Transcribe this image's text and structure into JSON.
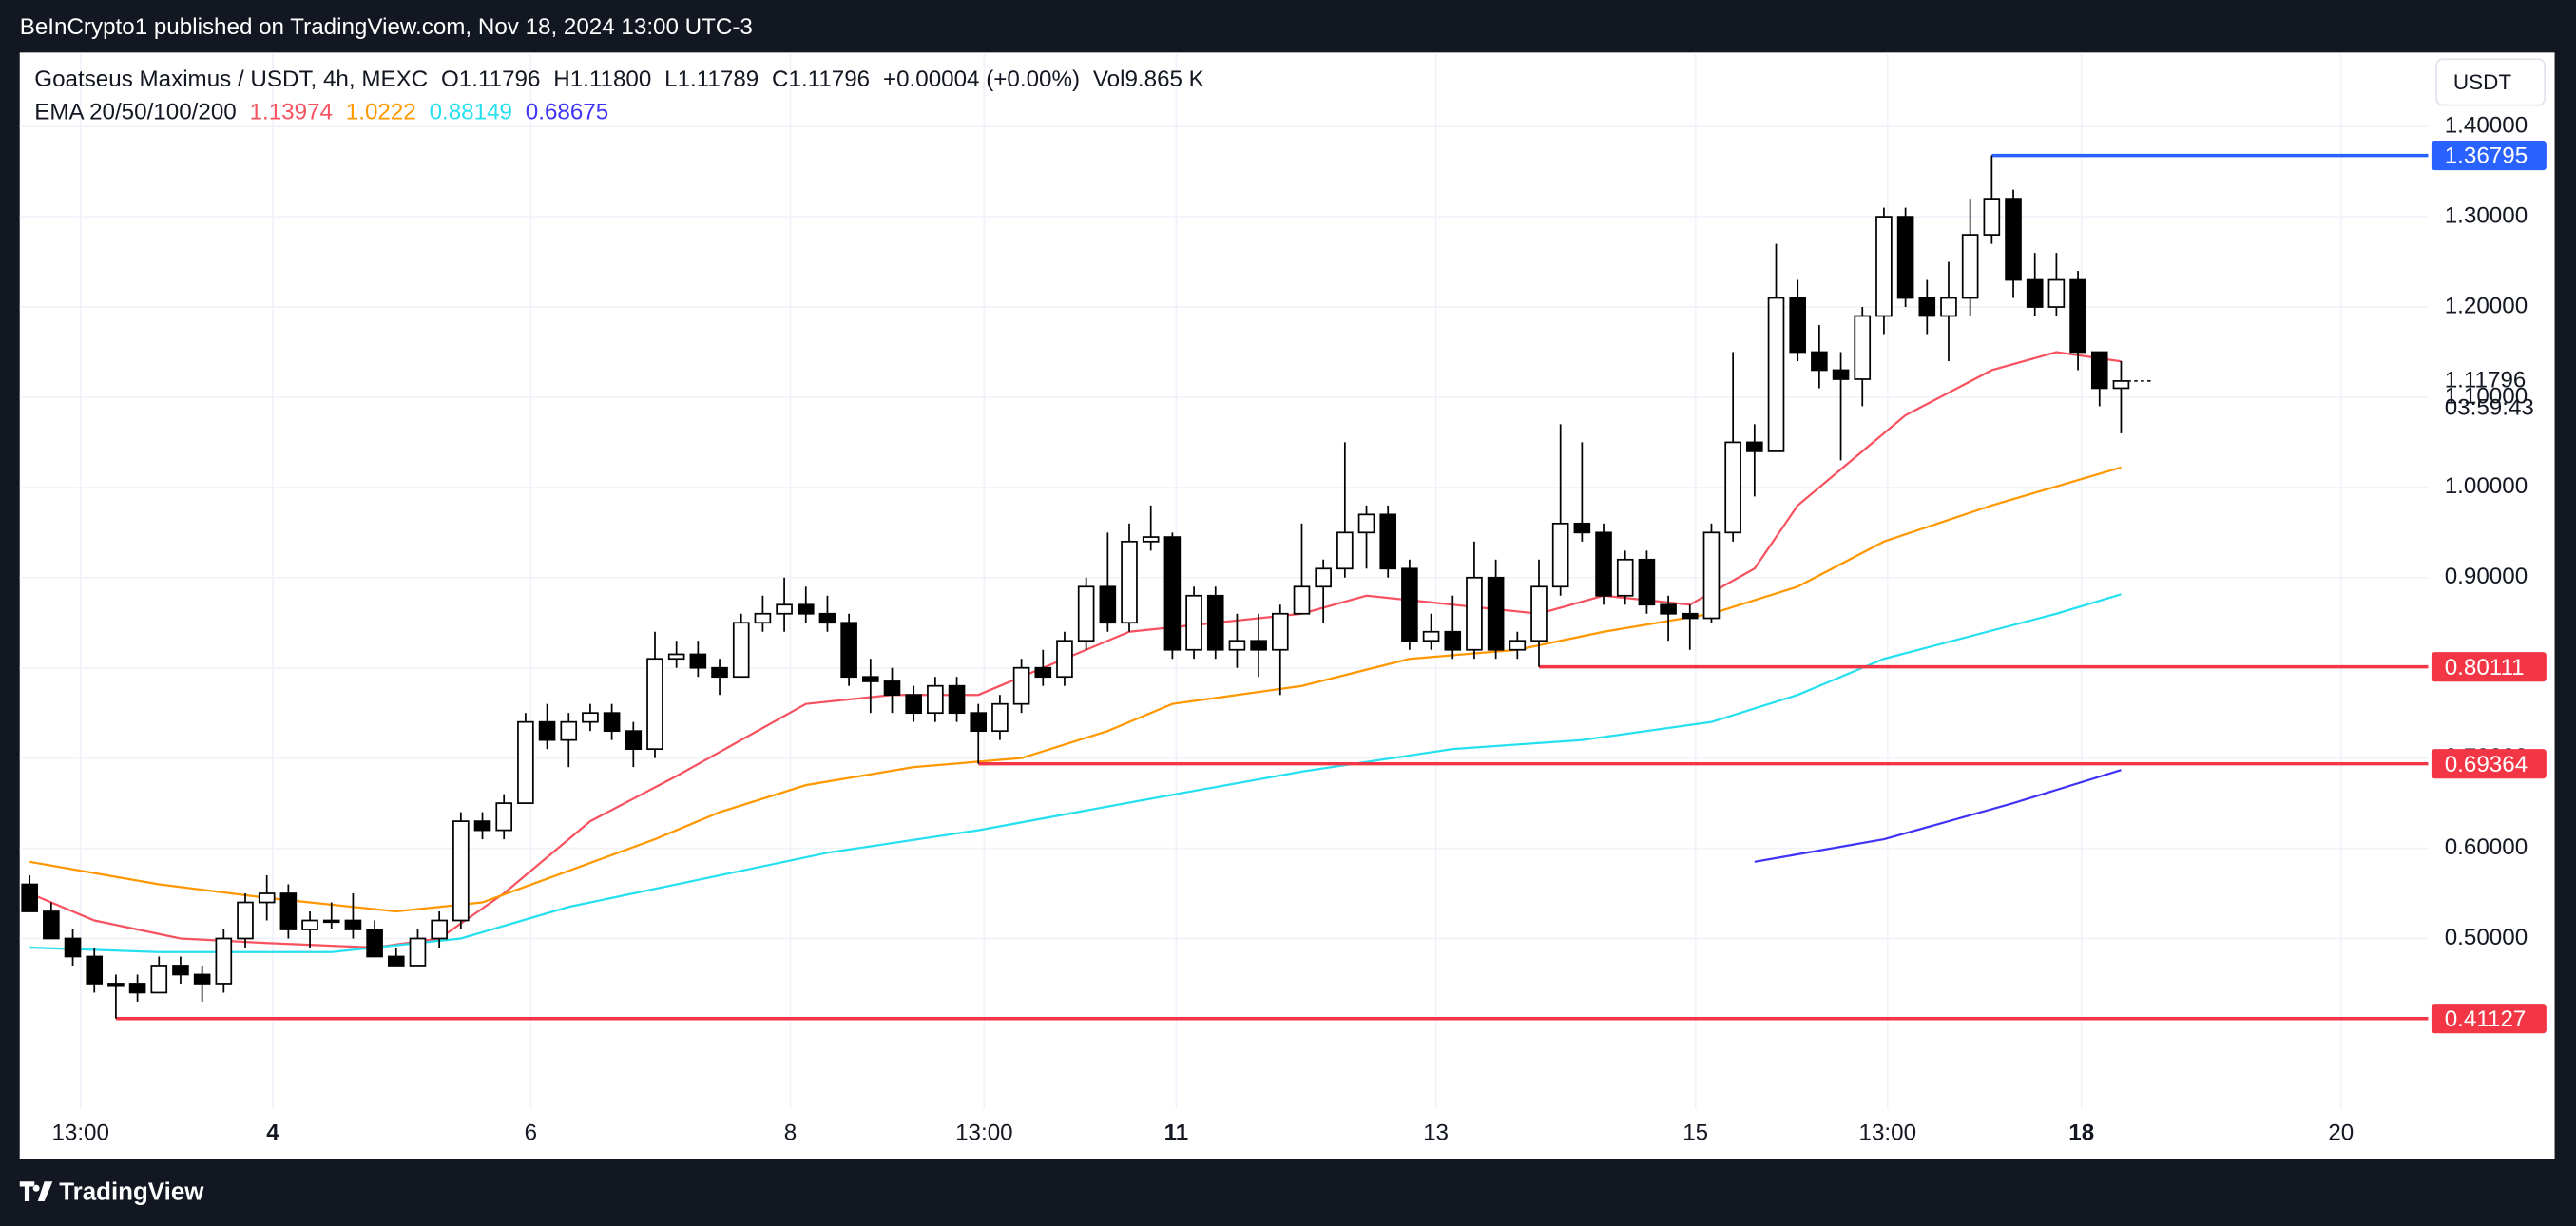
{
  "header": {
    "published": "BeInCrypto1 published on TradingView.com, Nov 18, 2024 13:00 UTC-3"
  },
  "footer": {
    "logo": "TradingView"
  },
  "chart_data": {
    "type": "candlestick",
    "legend": {
      "symbol": "Goatseus Maximus / USDT, 4h, MEXC",
      "open": "O1.11796",
      "high": "H1.11800",
      "low": "L1.11789",
      "close": "C1.11796",
      "change": "+0.00004 (+0.00%)",
      "volume": "Vol9.865 K",
      "ema_title": "EMA 20/50/100/200"
    },
    "currency": "USDT",
    "countdown": "03:59:43",
    "x": [
      0,
      1,
      2,
      3,
      4,
      5,
      6,
      7,
      8,
      9,
      10,
      11,
      12,
      13,
      14,
      15,
      16,
      17,
      18,
      19,
      20,
      21,
      22,
      23,
      24,
      25,
      26,
      27,
      28,
      29,
      30,
      31,
      32,
      33,
      34,
      35,
      36,
      37,
      38,
      39,
      40,
      41,
      42,
      43,
      44,
      45,
      46,
      47,
      48,
      49,
      50,
      51,
      52,
      53,
      54,
      55,
      56,
      57,
      58,
      59,
      60,
      61,
      62,
      63,
      64,
      65,
      66,
      67,
      68,
      69,
      70,
      71,
      72,
      73,
      74,
      75,
      76,
      77,
      78,
      79,
      80,
      81,
      82,
      83,
      84,
      85,
      86,
      87,
      88,
      89,
      90,
      91,
      92,
      93,
      94,
      95,
      96,
      97
    ],
    "open": [
      0.56,
      0.53,
      0.5,
      0.48,
      0.45,
      0.45,
      0.44,
      0.47,
      0.46,
      0.45,
      0.5,
      0.54,
      0.55,
      0.51,
      0.52,
      0.52,
      0.51,
      0.48,
      0.47,
      0.5,
      0.52,
      0.63,
      0.62,
      0.65,
      0.74,
      0.72,
      0.74,
      0.75,
      0.73,
      0.71,
      0.81,
      0.815,
      0.8,
      0.79,
      0.85,
      0.86,
      0.87,
      0.86,
      0.85,
      0.79,
      0.785,
      0.77,
      0.75,
      0.78,
      0.75,
      0.73,
      0.76,
      0.8,
      0.79,
      0.83,
      0.89,
      0.85,
      0.94,
      0.945,
      0.82,
      0.88,
      0.82,
      0.83,
      0.82,
      0.86,
      0.89,
      0.91,
      0.95,
      0.97,
      0.91,
      0.83,
      0.84,
      0.82,
      0.9,
      0.82,
      0.83,
      0.89,
      0.96,
      0.95,
      0.88,
      0.92,
      0.87,
      0.86,
      0.855,
      0.95,
      1.05,
      1.04,
      1.21,
      1.15,
      1.13,
      1.12,
      1.19,
      1.3,
      1.21,
      1.19,
      1.21,
      1.28,
      1.32,
      1.23,
      1.2,
      1.23,
      1.15,
      1.11
    ],
    "high": [
      0.57,
      0.54,
      0.51,
      0.49,
      0.46,
      0.46,
      0.48,
      0.48,
      0.47,
      0.51,
      0.55,
      0.57,
      0.56,
      0.53,
      0.54,
      0.55,
      0.52,
      0.49,
      0.51,
      0.53,
      0.64,
      0.64,
      0.66,
      0.75,
      0.76,
      0.75,
      0.76,
      0.76,
      0.74,
      0.84,
      0.83,
      0.83,
      0.81,
      0.86,
      0.88,
      0.9,
      0.89,
      0.88,
      0.86,
      0.81,
      0.8,
      0.78,
      0.79,
      0.79,
      0.76,
      0.77,
      0.81,
      0.82,
      0.84,
      0.9,
      0.95,
      0.96,
      0.98,
      0.95,
      0.89,
      0.89,
      0.86,
      0.86,
      0.87,
      0.96,
      0.92,
      1.05,
      0.98,
      0.98,
      0.92,
      0.86,
      0.88,
      0.94,
      0.92,
      0.84,
      0.92,
      1.07,
      1.05,
      0.96,
      0.93,
      0.93,
      0.88,
      0.87,
      0.96,
      1.15,
      1.07,
      1.27,
      1.23,
      1.18,
      1.15,
      1.2,
      1.31,
      1.31,
      1.23,
      1.25,
      1.32,
      1.36795,
      1.33,
      1.26,
      1.26,
      1.24,
      1.15,
      1.14
    ],
    "low": [
      0.53,
      0.5,
      0.47,
      0.44,
      0.41127,
      0.43,
      0.44,
      0.45,
      0.43,
      0.44,
      0.49,
      0.52,
      0.5,
      0.49,
      0.51,
      0.5,
      0.48,
      0.47,
      0.47,
      0.49,
      0.51,
      0.61,
      0.61,
      0.65,
      0.71,
      0.69,
      0.73,
      0.72,
      0.69,
      0.7,
      0.8,
      0.79,
      0.77,
      0.79,
      0.84,
      0.84,
      0.85,
      0.84,
      0.78,
      0.75,
      0.75,
      0.74,
      0.74,
      0.74,
      0.69364,
      0.72,
      0.75,
      0.78,
      0.78,
      0.82,
      0.84,
      0.84,
      0.93,
      0.81,
      0.81,
      0.81,
      0.8,
      0.79,
      0.77,
      0.86,
      0.85,
      0.9,
      0.91,
      0.9,
      0.82,
      0.82,
      0.81,
      0.81,
      0.81,
      0.81,
      0.80111,
      0.88,
      0.94,
      0.87,
      0.87,
      0.86,
      0.83,
      0.82,
      0.85,
      0.94,
      0.99,
      1.04,
      1.14,
      1.11,
      1.03,
      1.09,
      1.17,
      1.2,
      1.17,
      1.14,
      1.19,
      1.27,
      1.21,
      1.19,
      1.19,
      1.13,
      1.09,
      1.06
    ],
    "close": [
      0.53,
      0.5,
      0.48,
      0.45,
      0.45,
      0.44,
      0.47,
      0.46,
      0.45,
      0.5,
      0.54,
      0.55,
      0.51,
      0.52,
      0.52,
      0.51,
      0.48,
      0.47,
      0.5,
      0.52,
      0.63,
      0.62,
      0.65,
      0.74,
      0.72,
      0.74,
      0.75,
      0.73,
      0.71,
      0.81,
      0.815,
      0.8,
      0.79,
      0.85,
      0.86,
      0.87,
      0.86,
      0.85,
      0.79,
      0.785,
      0.77,
      0.75,
      0.78,
      0.75,
      0.73,
      0.76,
      0.8,
      0.79,
      0.83,
      0.89,
      0.85,
      0.94,
      0.945,
      0.82,
      0.88,
      0.82,
      0.83,
      0.82,
      0.86,
      0.89,
      0.91,
      0.95,
      0.97,
      0.91,
      0.83,
      0.84,
      0.82,
      0.9,
      0.82,
      0.83,
      0.89,
      0.96,
      0.95,
      0.88,
      0.92,
      0.87,
      0.86,
      0.855,
      0.95,
      1.05,
      1.04,
      1.21,
      1.15,
      1.13,
      1.12,
      1.19,
      1.3,
      1.21,
      1.19,
      1.21,
      1.28,
      1.32,
      1.23,
      1.2,
      1.23,
      1.15,
      1.11,
      1.11796
    ],
    "up_color": "#ffffff",
    "down_color": "#000000",
    "series": [
      {
        "color": "#f7525f",
        "x": [
          0,
          3,
          7,
          11,
          16,
          19,
          22,
          26,
          30,
          33,
          36,
          40,
          44,
          47,
          51,
          55,
          59,
          62,
          66,
          70,
          73,
          77,
          80,
          82,
          85,
          87,
          91,
          94,
          97
        ],
        "values": [
          0.55,
          0.52,
          0.5,
          0.495,
          0.49,
          0.5,
          0.55,
          0.63,
          0.68,
          0.72,
          0.76,
          0.77,
          0.77,
          0.8,
          0.84,
          0.85,
          0.86,
          0.88,
          0.87,
          0.86,
          0.88,
          0.87,
          0.91,
          0.98,
          1.04,
          1.08,
          1.13,
          1.15,
          1.13974
        ]
      },
      {
        "color": "#ff9800",
        "x": [
          0,
          6,
          11,
          17,
          21,
          25,
          29,
          32,
          36,
          41,
          46,
          50,
          53,
          59,
          64,
          69,
          73,
          78,
          82,
          86,
          91,
          97
        ],
        "values": [
          0.585,
          0.56,
          0.545,
          0.53,
          0.54,
          0.575,
          0.61,
          0.64,
          0.67,
          0.69,
          0.7,
          0.73,
          0.76,
          0.78,
          0.81,
          0.82,
          0.84,
          0.86,
          0.89,
          0.94,
          0.98,
          1.0222
        ]
      },
      {
        "color": "#26e0f0",
        "x": [
          0,
          6,
          14,
          20,
          25,
          31,
          37,
          44,
          52,
          59,
          66,
          72,
          78,
          82,
          86,
          94,
          97
        ],
        "values": [
          0.49,
          0.485,
          0.485,
          0.5,
          0.535,
          0.565,
          0.595,
          0.62,
          0.655,
          0.685,
          0.71,
          0.72,
          0.74,
          0.77,
          0.81,
          0.86,
          0.88149
        ]
      },
      {
        "color": "#3f33f5",
        "x": [
          80,
          86,
          92,
          97
        ],
        "values": [
          0.585,
          0.61,
          0.65,
          0.68675
        ]
      }
    ],
    "levels": [
      {
        "value": 1.36795,
        "start": 91,
        "color": "#2962ff"
      },
      {
        "value": 0.80111,
        "start": 70,
        "color": "#f23645"
      },
      {
        "value": 0.69364,
        "start": 44,
        "color": "#f23645"
      },
      {
        "value": 0.41127,
        "start": 4,
        "color": "#f23645"
      }
    ],
    "ylim": [
      0.256,
      1.482
    ],
    "yticks": [
      {
        "value": 0.5,
        "label": "0.50000"
      },
      {
        "value": 0.6,
        "label": "0.60000"
      },
      {
        "value": 0.7,
        "label": "0.70000"
      },
      {
        "value": 0.8,
        "label": "0.80000"
      },
      {
        "value": 0.9,
        "label": "0.90000"
      },
      {
        "value": 1.0,
        "label": "1.00000"
      },
      {
        "value": 1.1,
        "label": "1.10000"
      },
      {
        "value": 1.2,
        "label": "1.20000"
      },
      {
        "value": 1.3,
        "label": "1.30000"
      },
      {
        "value": 1.4,
        "label": "1.40000"
      }
    ],
    "xlim": [
      -0.46,
      111.24
    ],
    "xticks": [
      {
        "value": 2.36,
        "label": "13:00"
      },
      {
        "value": 11.28,
        "label": "4",
        "bold": true
      },
      {
        "value": 23.24,
        "label": "6"
      },
      {
        "value": 35.28,
        "label": "8"
      },
      {
        "value": 44.27,
        "label": "13:00"
      },
      {
        "value": 53.18,
        "label": "11",
        "bold": true
      },
      {
        "value": 65.22,
        "label": "13"
      },
      {
        "value": 77.26,
        "label": "15"
      },
      {
        "value": 86.17,
        "label": "13:00"
      },
      {
        "value": 95.16,
        "label": "18",
        "bold": true
      },
      {
        "value": 107.2,
        "label": "20"
      }
    ],
    "grid": true
  }
}
